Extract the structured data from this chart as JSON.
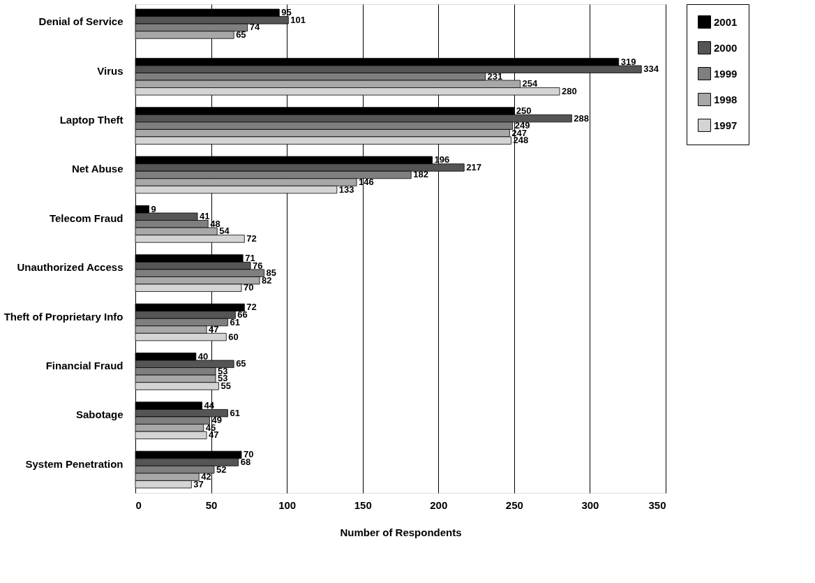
{
  "chart_data": {
    "type": "bar",
    "orientation": "horizontal",
    "xlabel": "Number of Respondents",
    "categories": [
      "Denial of Service",
      "Virus",
      "Laptop Theft",
      "Net Abuse",
      "Telecom Fraud",
      "Unauthorized Access",
      "Theft of Proprietary Info",
      "Financial Fraud",
      "Sabotage",
      "System Penetration"
    ],
    "series": [
      {
        "name": "2001",
        "color": "#000000",
        "values": [
          95,
          319,
          250,
          196,
          9,
          71,
          72,
          40,
          44,
          70
        ]
      },
      {
        "name": "2000",
        "color": "#555555",
        "values": [
          101,
          334,
          288,
          217,
          41,
          76,
          66,
          65,
          61,
          68
        ]
      },
      {
        "name": "1999",
        "color": "#7f7f7f",
        "values": [
          74,
          231,
          249,
          182,
          48,
          85,
          61,
          53,
          49,
          52
        ]
      },
      {
        "name": "1998",
        "color": "#a8a8a8",
        "values": [
          65,
          254,
          247,
          146,
          54,
          82,
          47,
          53,
          45,
          42
        ]
      },
      {
        "name": "1997",
        "color": "#d4d4d4",
        "values": [
          null,
          280,
          248,
          133,
          72,
          70,
          60,
          55,
          47,
          37
        ]
      }
    ],
    "xlim": [
      0,
      350
    ],
    "xticks": [
      0,
      50,
      100,
      150,
      200,
      250,
      300,
      350
    ],
    "grid": "x",
    "legend": "right",
    "data_labels": true
  }
}
